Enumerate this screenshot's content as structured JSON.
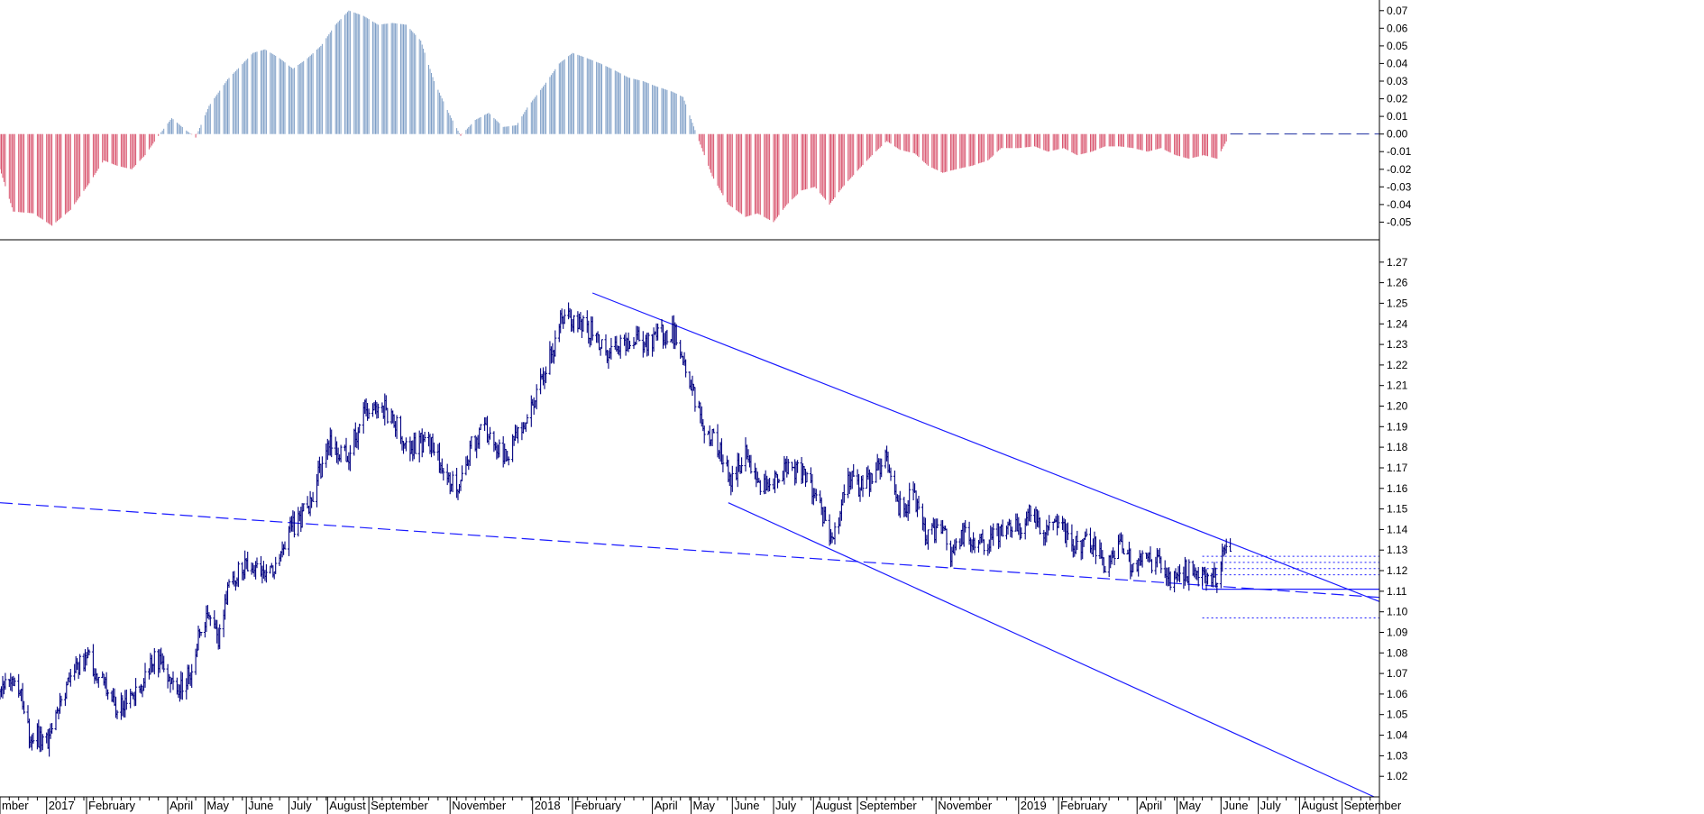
{
  "chart_data": [
    {
      "type": "bar",
      "panel": "oscillator",
      "ylim": [
        -0.06,
        0.075
      ],
      "yticks": [
        0.07,
        0.06,
        0.05,
        0.04,
        0.03,
        0.02,
        0.01,
        0.0,
        -0.01,
        -0.02,
        -0.03,
        -0.04,
        -0.05
      ],
      "ytick_labels": [
        "0.07",
        "0.06",
        "0.05",
        "0.04",
        "0.03",
        "0.02",
        "0.01",
        "0.00",
        "-0.01",
        "-0.02",
        "-0.03",
        "-0.04",
        "-0.05"
      ],
      "zero_line": 0.0,
      "colors": {
        "positive": "#7f9fc7",
        "negative": "#d9546e",
        "zero_line": "#1c2fa0"
      },
      "x_start": "2016-11-28",
      "x_end": "2019-06-10",
      "keyframes": [
        [
          "2016-11-28",
          -0.02
        ],
        [
          "2016-12-08",
          -0.044
        ],
        [
          "2016-12-23",
          -0.045
        ],
        [
          "2017-01-06",
          -0.052
        ],
        [
          "2017-01-20",
          -0.043
        ],
        [
          "2017-02-03",
          -0.028
        ],
        [
          "2017-02-14",
          -0.015
        ],
        [
          "2017-02-24",
          -0.018
        ],
        [
          "2017-03-07",
          -0.02
        ],
        [
          "2017-03-17",
          -0.012
        ],
        [
          "2017-03-28",
          0.0
        ],
        [
          "2017-04-06",
          0.009
        ],
        [
          "2017-04-17",
          0.002
        ],
        [
          "2017-04-24",
          -0.002
        ],
        [
          "2017-05-04",
          0.016
        ],
        [
          "2017-05-18",
          0.031
        ],
        [
          "2017-06-06",
          0.046
        ],
        [
          "2017-06-15",
          0.048
        ],
        [
          "2017-06-26",
          0.043
        ],
        [
          "2017-07-06",
          0.037
        ],
        [
          "2017-07-17",
          0.043
        ],
        [
          "2017-07-27",
          0.05
        ],
        [
          "2017-08-07",
          0.062
        ],
        [
          "2017-08-17",
          0.07
        ],
        [
          "2017-08-28",
          0.067
        ],
        [
          "2017-09-08",
          0.062
        ],
        [
          "2017-09-19",
          0.063
        ],
        [
          "2017-09-29",
          0.062
        ],
        [
          "2017-10-10",
          0.053
        ],
        [
          "2017-10-20",
          0.03
        ],
        [
          "2017-10-31",
          0.012
        ],
        [
          "2017-11-09",
          -0.001
        ],
        [
          "2017-11-20",
          0.008
        ],
        [
          "2017-11-30",
          0.012
        ],
        [
          "2017-12-11",
          0.004
        ],
        [
          "2017-12-21",
          0.005
        ],
        [
          "2017-12-29",
          0.015
        ],
        [
          "2018-01-11",
          0.028
        ],
        [
          "2018-01-22",
          0.04
        ],
        [
          "2018-02-01",
          0.046
        ],
        [
          "2018-02-12",
          0.043
        ],
        [
          "2018-02-22",
          0.04
        ],
        [
          "2018-03-05",
          0.036
        ],
        [
          "2018-03-15",
          0.032
        ],
        [
          "2018-03-26",
          0.03
        ],
        [
          "2018-04-05",
          0.027
        ],
        [
          "2018-04-17",
          0.024
        ],
        [
          "2018-04-25",
          0.021
        ],
        [
          "2018-05-07",
          -0.004
        ],
        [
          "2018-05-17",
          -0.024
        ],
        [
          "2018-05-29",
          -0.04
        ],
        [
          "2018-06-11",
          -0.047
        ],
        [
          "2018-06-20",
          -0.045
        ],
        [
          "2018-07-02",
          -0.05
        ],
        [
          "2018-07-12",
          -0.04
        ],
        [
          "2018-07-23",
          -0.032
        ],
        [
          "2018-08-02",
          -0.03
        ],
        [
          "2018-08-13",
          -0.04
        ],
        [
          "2018-08-23",
          -0.03
        ],
        [
          "2018-09-04",
          -0.02
        ],
        [
          "2018-09-14",
          -0.012
        ],
        [
          "2018-09-25",
          -0.004
        ],
        [
          "2018-10-05",
          -0.009
        ],
        [
          "2018-10-16",
          -0.011
        ],
        [
          "2018-10-26",
          -0.018
        ],
        [
          "2018-11-06",
          -0.022
        ],
        [
          "2018-11-16",
          -0.02
        ],
        [
          "2018-11-28",
          -0.018
        ],
        [
          "2018-12-10",
          -0.015
        ],
        [
          "2018-12-20",
          -0.008
        ],
        [
          "2019-01-02",
          -0.008
        ],
        [
          "2019-01-14",
          -0.007
        ],
        [
          "2019-01-24",
          -0.01
        ],
        [
          "2019-02-05",
          -0.008
        ],
        [
          "2019-02-15",
          -0.012
        ],
        [
          "2019-02-26",
          -0.01
        ],
        [
          "2019-03-08",
          -0.007
        ],
        [
          "2019-03-19",
          -0.007
        ],
        [
          "2019-03-29",
          -0.008
        ],
        [
          "2019-04-09",
          -0.01
        ],
        [
          "2019-04-19",
          -0.008
        ],
        [
          "2019-04-30",
          -0.012
        ],
        [
          "2019-05-10",
          -0.014
        ],
        [
          "2019-05-21",
          -0.012
        ],
        [
          "2019-05-31",
          -0.014
        ],
        [
          "2019-06-10",
          0.0
        ]
      ]
    },
    {
      "type": "ohlc",
      "panel": "price",
      "ylim": [
        1.01,
        1.28
      ],
      "yticks": [
        1.27,
        1.26,
        1.25,
        1.24,
        1.23,
        1.22,
        1.21,
        1.2,
        1.19,
        1.18,
        1.17,
        1.16,
        1.15,
        1.14,
        1.13,
        1.12,
        1.11,
        1.1,
        1.09,
        1.08,
        1.07,
        1.06,
        1.05,
        1.04,
        1.03,
        1.02
      ],
      "ytick_labels": [
        "1.27",
        "1.26",
        "1.25",
        "1.24",
        "1.23",
        "1.22",
        "1.21",
        "1.20",
        "1.19",
        "1.18",
        "1.17",
        "1.16",
        "1.15",
        "1.14",
        "1.13",
        "1.12",
        "1.11",
        "1.10",
        "1.09",
        "1.08",
        "1.07",
        "1.06",
        "1.05",
        "1.04",
        "1.03",
        "1.02"
      ],
      "colors": {
        "bars": "#000080",
        "trendlines": "#1a1aff"
      },
      "x_start": "2016-11-28",
      "x_end": "2019-06-10",
      "keyframes": [
        [
          "2016-11-28",
          1.062
        ],
        [
          "2016-12-06",
          1.07
        ],
        [
          "2016-12-12",
          1.065
        ],
        [
          "2016-12-20",
          1.04
        ],
        [
          "2017-01-03",
          1.038
        ],
        [
          "2017-01-12",
          1.055
        ],
        [
          "2017-01-23",
          1.072
        ],
        [
          "2017-02-02",
          1.078
        ],
        [
          "2017-02-13",
          1.066
        ],
        [
          "2017-02-23",
          1.055
        ],
        [
          "2017-03-06",
          1.058
        ],
        [
          "2017-03-14",
          1.062
        ],
        [
          "2017-03-24",
          1.078
        ],
        [
          "2017-04-03",
          1.068
        ],
        [
          "2017-04-11",
          1.062
        ],
        [
          "2017-04-21",
          1.072
        ],
        [
          "2017-04-26",
          1.09
        ],
        [
          "2017-05-04",
          1.098
        ],
        [
          "2017-05-11",
          1.087
        ],
        [
          "2017-05-19",
          1.115
        ],
        [
          "2017-05-29",
          1.122
        ],
        [
          "2017-06-08",
          1.124
        ],
        [
          "2017-06-19",
          1.118
        ],
        [
          "2017-06-26",
          1.13
        ],
        [
          "2017-07-04",
          1.14
        ],
        [
          "2017-07-17",
          1.15
        ],
        [
          "2017-07-26",
          1.168
        ],
        [
          "2017-08-03",
          1.182
        ],
        [
          "2017-08-16",
          1.175
        ],
        [
          "2017-08-29",
          1.198
        ],
        [
          "2017-09-08",
          1.2
        ],
        [
          "2017-09-19",
          1.195
        ],
        [
          "2017-09-28",
          1.178
        ],
        [
          "2017-10-10",
          1.182
        ],
        [
          "2017-10-20",
          1.18
        ],
        [
          "2017-10-31",
          1.164
        ],
        [
          "2017-11-07",
          1.16
        ],
        [
          "2017-11-15",
          1.178
        ],
        [
          "2017-11-27",
          1.19
        ],
        [
          "2017-12-06",
          1.178
        ],
        [
          "2017-12-14",
          1.175
        ],
        [
          "2017-12-28",
          1.194
        ],
        [
          "2018-01-04",
          1.205
        ],
        [
          "2018-01-16",
          1.225
        ],
        [
          "2018-01-25",
          1.245
        ],
        [
          "2018-02-05",
          1.24
        ],
        [
          "2018-02-16",
          1.236
        ],
        [
          "2018-02-27",
          1.225
        ],
        [
          "2018-03-09",
          1.232
        ],
        [
          "2018-03-20",
          1.232
        ],
        [
          "2018-03-30",
          1.23
        ],
        [
          "2018-04-10",
          1.235
        ],
        [
          "2018-04-20",
          1.235
        ],
        [
          "2018-04-30",
          1.21
        ],
        [
          "2018-05-10",
          1.192
        ],
        [
          "2018-05-22",
          1.178
        ],
        [
          "2018-06-01",
          1.164
        ],
        [
          "2018-06-11",
          1.178
        ],
        [
          "2018-06-21",
          1.16
        ],
        [
          "2018-07-02",
          1.164
        ],
        [
          "2018-07-13",
          1.17
        ],
        [
          "2018-07-25",
          1.168
        ],
        [
          "2018-08-02",
          1.158
        ],
        [
          "2018-08-10",
          1.142
        ],
        [
          "2018-08-16",
          1.136
        ],
        [
          "2018-08-27",
          1.165
        ],
        [
          "2018-09-07",
          1.16
        ],
        [
          "2018-09-17",
          1.168
        ],
        [
          "2018-09-25",
          1.175
        ],
        [
          "2018-10-04",
          1.15
        ],
        [
          "2018-10-15",
          1.156
        ],
        [
          "2018-10-25",
          1.138
        ],
        [
          "2018-11-05",
          1.14
        ],
        [
          "2018-11-13",
          1.128
        ],
        [
          "2018-11-22",
          1.138
        ],
        [
          "2018-12-03",
          1.134
        ],
        [
          "2018-12-13",
          1.136
        ],
        [
          "2018-12-24",
          1.142
        ],
        [
          "2019-01-04",
          1.14
        ],
        [
          "2019-01-10",
          1.152
        ],
        [
          "2019-01-21",
          1.136
        ],
        [
          "2019-01-31",
          1.146
        ],
        [
          "2019-02-11",
          1.132
        ],
        [
          "2019-02-21",
          1.134
        ],
        [
          "2019-03-04",
          1.13
        ],
        [
          "2019-03-07",
          1.12
        ],
        [
          "2019-03-19",
          1.134
        ],
        [
          "2019-03-29",
          1.122
        ],
        [
          "2019-04-09",
          1.125
        ],
        [
          "2019-04-19",
          1.124
        ],
        [
          "2019-04-26",
          1.114
        ],
        [
          "2019-05-06",
          1.12
        ],
        [
          "2019-05-16",
          1.118
        ],
        [
          "2019-05-24",
          1.114
        ],
        [
          "2019-05-31",
          1.118
        ],
        [
          "2019-06-06",
          1.13
        ],
        [
          "2019-06-10",
          1.134
        ],
        [
          "2019-06-14",
          1.121
        ]
      ],
      "trendlines": [
        {
          "id": "upper-channel-line",
          "style": "solid",
          "points": [
            [
              "2018-02-16",
              1.255
            ],
            [
              "2019-09-30",
              1.105
            ]
          ]
        },
        {
          "id": "lower-channel-line",
          "style": "solid",
          "points": [
            [
              "2018-05-29",
              1.153
            ],
            [
              "2019-09-26",
              1.01
            ]
          ]
        },
        {
          "id": "long-term-dashed-trendline",
          "style": "dashed",
          "points": [
            [
              "2016-11-28",
              1.153
            ],
            [
              "2019-09-30",
              1.107
            ]
          ]
        },
        {
          "id": "support-line",
          "style": "solid",
          "points": [
            [
              "2019-05-20",
              1.111
            ],
            [
              "2019-09-30",
              1.111
            ]
          ]
        }
      ],
      "horizontal_levels": [
        1.127,
        1.124,
        1.121,
        1.118,
        1.097
      ]
    }
  ],
  "x_axis": {
    "start": "2016-11-28",
    "end": "2019-09-30",
    "labels": [
      {
        "text": "mber",
        "date": "2016-11-28"
      },
      {
        "text": "2017",
        "date": "2017-01-02"
      },
      {
        "text": "February",
        "date": "2017-02-01"
      },
      {
        "text": "April",
        "date": "2017-04-03"
      },
      {
        "text": "May",
        "date": "2017-05-01"
      },
      {
        "text": "June",
        "date": "2017-06-01"
      },
      {
        "text": "July",
        "date": "2017-07-03"
      },
      {
        "text": "August",
        "date": "2017-08-01"
      },
      {
        "text": "September",
        "date": "2017-09-01"
      },
      {
        "text": "November",
        "date": "2017-11-01"
      },
      {
        "text": "2018",
        "date": "2018-01-02"
      },
      {
        "text": "February",
        "date": "2018-02-01"
      },
      {
        "text": "April",
        "date": "2018-04-02"
      },
      {
        "text": "May",
        "date": "2018-05-01"
      },
      {
        "text": "June",
        "date": "2018-06-01"
      },
      {
        "text": "July",
        "date": "2018-07-02"
      },
      {
        "text": "August",
        "date": "2018-08-01"
      },
      {
        "text": "September",
        "date": "2018-09-03"
      },
      {
        "text": "November",
        "date": "2018-11-01"
      },
      {
        "text": "2019",
        "date": "2019-01-02"
      },
      {
        "text": "February",
        "date": "2019-02-01"
      },
      {
        "text": "April",
        "date": "2019-04-01"
      },
      {
        "text": "May",
        "date": "2019-05-01"
      },
      {
        "text": "June",
        "date": "2019-06-03"
      },
      {
        "text": "July",
        "date": "2019-07-01"
      },
      {
        "text": "August",
        "date": "2019-08-01"
      },
      {
        "text": "September",
        "date": "2019-09-02"
      }
    ]
  }
}
